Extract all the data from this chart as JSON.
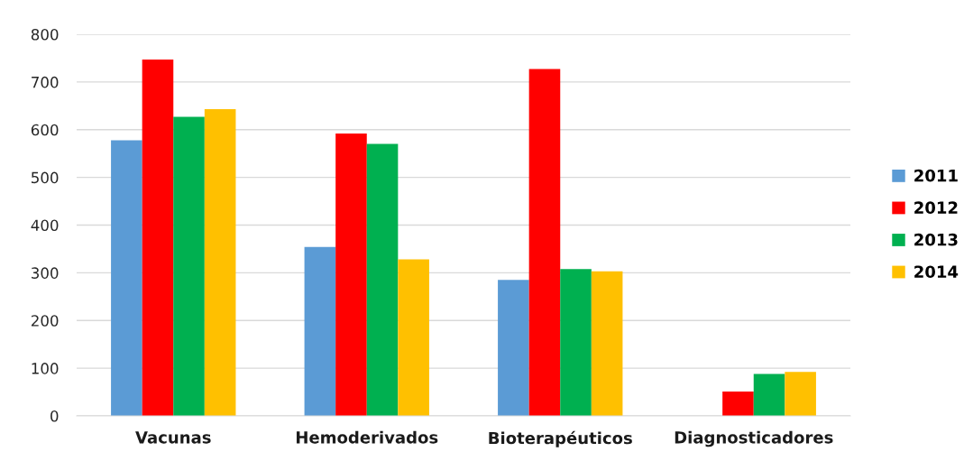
{
  "chart_data": {
    "type": "bar",
    "categories": [
      "Vacunas",
      "Hemoderivados",
      "Bioterapéuticos",
      "Diagnosticadores"
    ],
    "series": [
      {
        "name": "2011",
        "color": "#5b9bd5",
        "values": [
          578,
          354,
          285,
          null
        ]
      },
      {
        "name": "2012",
        "color": "#ff0000",
        "values": [
          747,
          592,
          727,
          51
        ]
      },
      {
        "name": "2013",
        "color": "#00b050",
        "values": [
          627,
          570,
          308,
          88
        ]
      },
      {
        "name": "2014",
        "color": "#ffc000",
        "values": [
          643,
          328,
          303,
          92
        ]
      }
    ],
    "ylim": [
      0,
      800
    ],
    "yticks": [
      0,
      100,
      200,
      300,
      400,
      500,
      600,
      700,
      800
    ],
    "grid": "y",
    "legend": "right"
  }
}
